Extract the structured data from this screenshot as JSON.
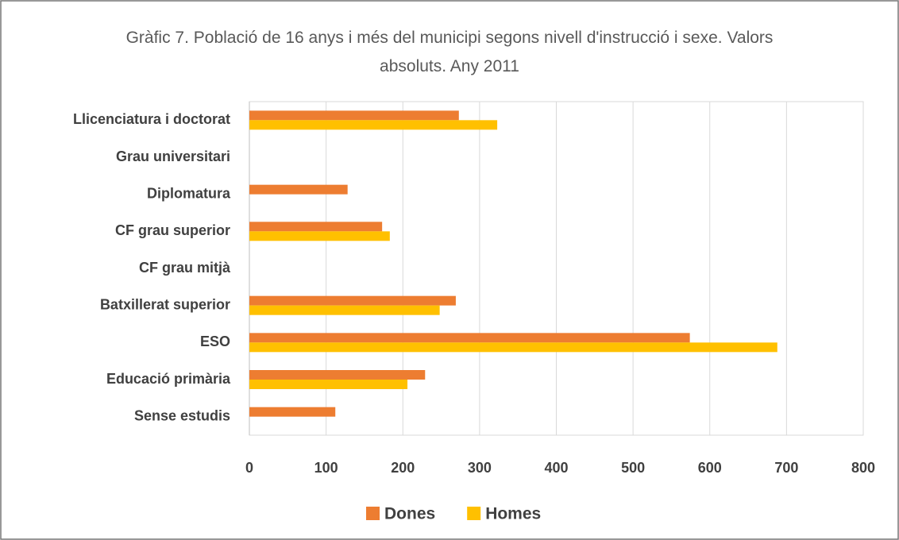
{
  "chart_data": {
    "type": "bar",
    "orientation": "horizontal",
    "title": "Gràfic 7. Població de 16 anys i més del municipi segons nivell d'instrucció i sexe. Valors absoluts. Any 2011",
    "categories": [
      "Llicenciatura i doctorat",
      "Grau universitari",
      "Diplomatura",
      "CF grau superior",
      "CF grau mitjà",
      "Batxillerat superior",
      "ESO",
      "Educació primària",
      "Sense estudis"
    ],
    "series": [
      {
        "name": "Dones",
        "color": "#ed7d31",
        "values": [
          273,
          0,
          128,
          173,
          0,
          269,
          574,
          229,
          112
        ]
      },
      {
        "name": "Homes",
        "color": "#ffc000",
        "values": [
          323,
          0,
          0,
          183,
          0,
          248,
          688,
          206,
          0
        ]
      }
    ],
    "xlim": [
      0,
      800
    ],
    "xticks": [
      0,
      100,
      200,
      300,
      400,
      500,
      600,
      700,
      800
    ],
    "grid": true,
    "legend": "bottom"
  }
}
